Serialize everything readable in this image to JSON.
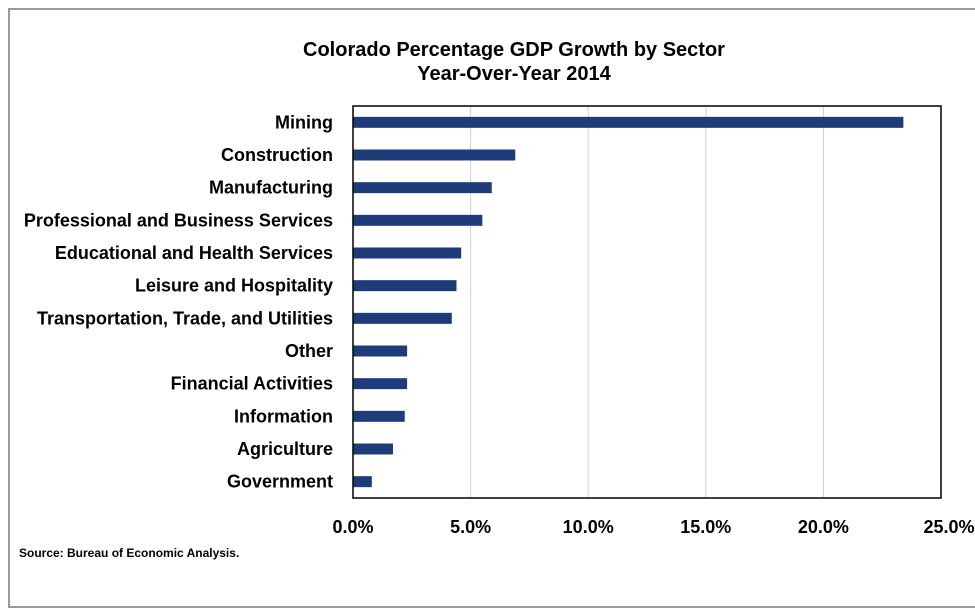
{
  "chart_data": {
    "type": "bar",
    "orientation": "horizontal",
    "title": "Colorado Percentage GDP Growth by Sector",
    "subtitle": "Year-Over-Year 2014",
    "categories": [
      "Mining",
      "Construction",
      "Manufacturing",
      "Professional and Business Services",
      "Educational and Health Services",
      "Leisure and Hospitality",
      "Transportation, Trade, and Utilities",
      "Other",
      "Financial Activities",
      "Information",
      "Agriculture",
      "Government"
    ],
    "values": [
      23.4,
      6.9,
      5.9,
      5.5,
      4.6,
      4.4,
      4.2,
      2.3,
      2.3,
      2.2,
      1.7,
      0.8
    ],
    "xlim": [
      0,
      25
    ],
    "xticks": [
      0,
      5,
      10,
      15,
      20,
      25
    ],
    "xtick_labels": [
      "0.0%",
      "5.0%",
      "10.0%",
      "15.0%",
      "20.0%",
      "25.0%"
    ],
    "xlabel": "",
    "ylabel": "",
    "grid": "vertical",
    "legend": "none",
    "bar_color": "#1f3c7a",
    "grid_color": "#d0d0d0",
    "source": "Source: Bureau of Economic Analysis."
  }
}
